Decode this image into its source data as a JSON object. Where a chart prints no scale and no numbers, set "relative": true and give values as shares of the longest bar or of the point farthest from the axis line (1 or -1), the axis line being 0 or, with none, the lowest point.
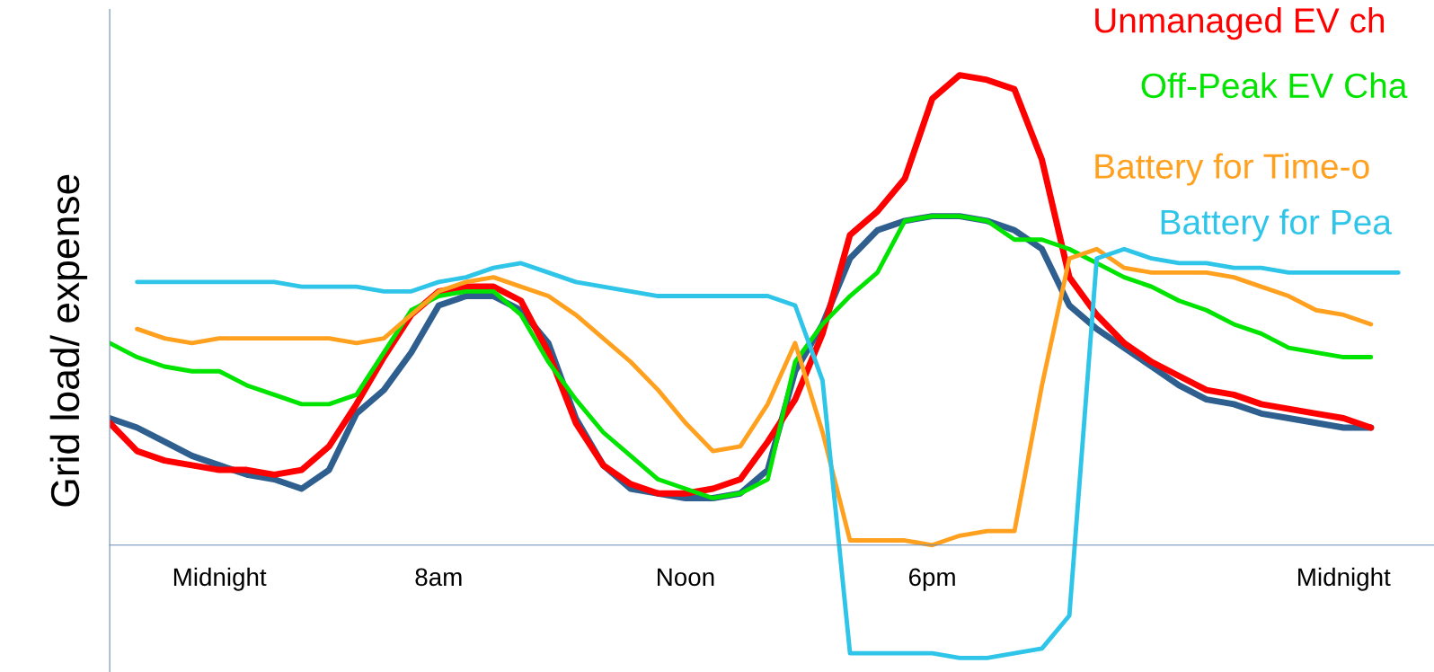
{
  "chart_data": {
    "type": "line",
    "relative": true,
    "ylabel": "Grid load/ expense",
    "categories": [
      null,
      null,
      null,
      null,
      "Midnight",
      null,
      null,
      null,
      null,
      null,
      null,
      null,
      "8am",
      null,
      null,
      null,
      null,
      null,
      null,
      null,
      null,
      "Noon",
      null,
      null,
      null,
      null,
      null,
      null,
      null,
      null,
      "6pm",
      null,
      null,
      null,
      null,
      null,
      null,
      null,
      null,
      null,
      null,
      null,
      null,
      null,
      null,
      "Midnight",
      null,
      null
    ],
    "grid": false,
    "marker": "none",
    "line_style": "solid",
    "series": [
      {
        "name": "Unmanaged EV ch",
        "color": "#ff0000",
        "values": [
          0.26,
          0.2,
          0.18,
          0.17,
          0.16,
          0.16,
          0.15,
          0.16,
          0.21,
          0.3,
          0.4,
          0.49,
          0.54,
          0.55,
          0.55,
          0.52,
          0.41,
          0.26,
          0.17,
          0.13,
          0.11,
          0.11,
          0.12,
          0.14,
          0.22,
          0.31,
          0.45,
          0.66,
          0.71,
          0.78,
          0.95,
          1.0,
          0.99,
          0.97,
          0.82,
          0.57,
          0.49,
          0.43,
          0.39,
          0.36,
          0.33,
          0.32,
          0.3,
          0.29,
          0.28,
          0.27,
          0.25,
          null
        ]
      },
      {
        "name": "Off-Peak EV Cha",
        "color": "#00e400",
        "values": [
          0.43,
          0.4,
          0.38,
          0.37,
          0.37,
          0.34,
          0.32,
          0.3,
          0.3,
          0.32,
          0.41,
          0.5,
          0.53,
          0.54,
          0.54,
          0.49,
          0.39,
          0.31,
          0.24,
          0.19,
          0.14,
          0.12,
          0.1,
          0.11,
          0.14,
          0.39,
          0.47,
          0.53,
          0.58,
          0.69,
          0.7,
          0.7,
          0.69,
          0.65,
          0.65,
          0.63,
          0.6,
          0.57,
          0.55,
          0.52,
          0.5,
          0.47,
          0.45,
          0.42,
          0.41,
          0.4,
          0.4,
          null
        ]
      },
      {
        "name": "Battery for Time-o",
        "color": "#ffa01e",
        "values": [
          null,
          0.46,
          0.44,
          0.43,
          0.44,
          0.44,
          0.44,
          0.44,
          0.44,
          0.43,
          0.44,
          0.49,
          0.54,
          0.56,
          0.57,
          0.55,
          0.53,
          0.49,
          0.44,
          0.39,
          0.33,
          0.26,
          0.2,
          0.21,
          0.3,
          0.43,
          0.24,
          0.01,
          0.01,
          0.01,
          0.0,
          0.02,
          0.03,
          0.03,
          0.34,
          0.61,
          0.63,
          0.59,
          0.58,
          0.58,
          0.58,
          0.57,
          0.55,
          0.53,
          0.5,
          0.49,
          0.47,
          null
        ]
      },
      {
        "name": "Battery for Pea",
        "color": "#2ec5e8",
        "values": [
          null,
          0.56,
          0.56,
          0.56,
          0.56,
          0.56,
          0.56,
          0.55,
          0.55,
          0.55,
          0.54,
          0.54,
          0.56,
          0.57,
          0.59,
          0.6,
          0.58,
          0.56,
          0.55,
          0.54,
          0.53,
          0.53,
          0.53,
          0.53,
          0.53,
          0.51,
          0.35,
          -0.23,
          -0.23,
          -0.23,
          -0.23,
          -0.24,
          -0.24,
          -0.23,
          -0.22,
          -0.15,
          0.61,
          0.63,
          0.61,
          0.6,
          0.6,
          0.59,
          0.59,
          0.58,
          0.58,
          0.58,
          0.58,
          0.58
        ]
      },
      {
        "color": "#2f5f8f",
        "values": [
          0.27,
          0.25,
          0.22,
          0.19,
          0.17,
          0.15,
          0.14,
          0.12,
          0.16,
          0.28,
          0.33,
          0.41,
          0.51,
          0.53,
          0.53,
          0.5,
          0.43,
          0.27,
          0.17,
          0.12,
          0.11,
          0.1,
          0.1,
          0.11,
          0.16,
          0.37,
          0.47,
          0.61,
          0.67,
          0.69,
          0.7,
          0.7,
          0.69,
          0.67,
          0.63,
          0.51,
          0.46,
          0.42,
          0.38,
          0.34,
          0.31,
          0.3,
          0.28,
          0.27,
          0.26,
          0.25,
          0.25,
          null
        ]
      }
    ]
  }
}
